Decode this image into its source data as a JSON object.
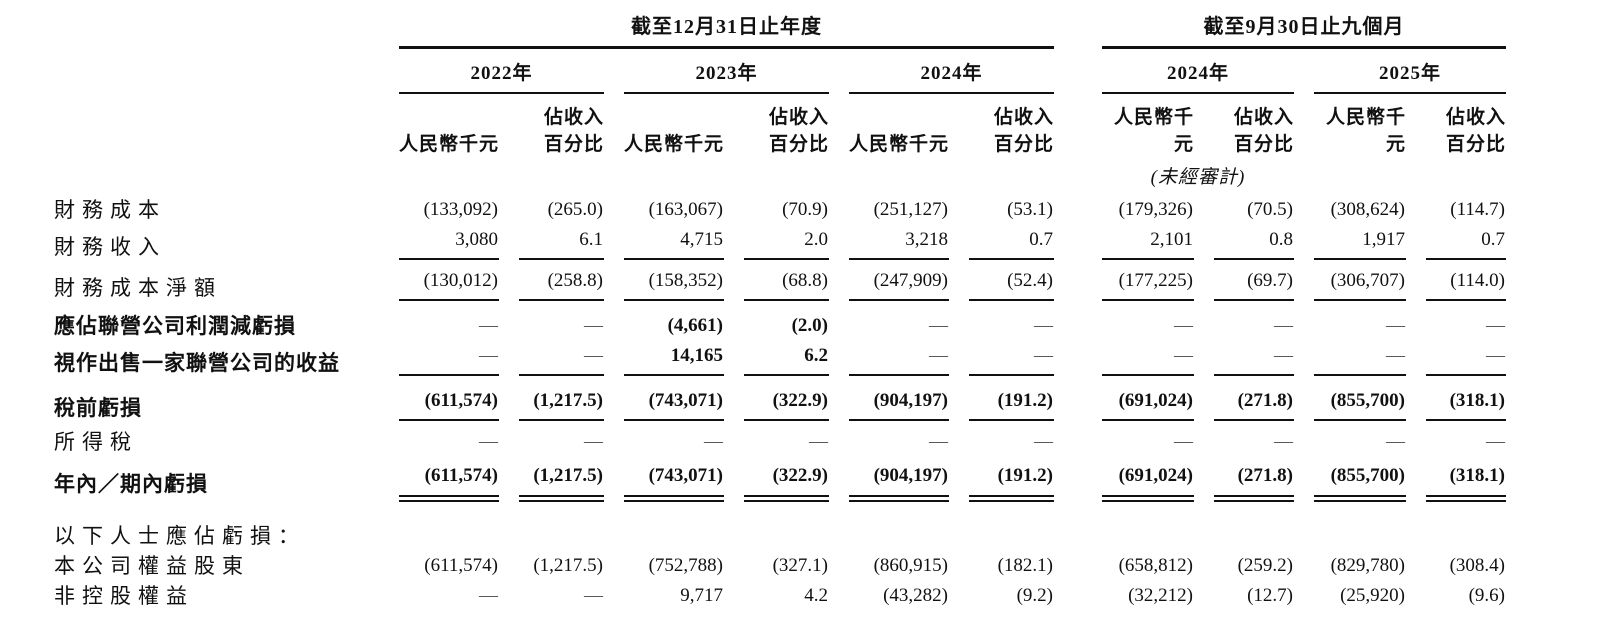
{
  "page": {
    "background": "#ffffff",
    "text_color": "#111111",
    "rule_color": "#111111",
    "dash_color": "#595959"
  },
  "table": {
    "sections": [
      {
        "title": "截至12月31日止年度",
        "years": [
          "2022年",
          "2023年",
          "2024年"
        ]
      },
      {
        "title": "截至9月30日止九個月",
        "years": [
          "2024年",
          "2025年"
        ],
        "unaudited_note": "(未經審計)"
      }
    ],
    "column_headers": {
      "amount": "人民幣千元",
      "percent": "佔收入\n百分比"
    },
    "rows": [
      {
        "label": "財務成本",
        "bold": false,
        "rule": "none",
        "gap": "none",
        "values": [
          "(133,092)",
          "(265.0)",
          "(163,067)",
          "(70.9)",
          "(251,127)",
          "(53.1)",
          "(179,326)",
          "(70.5)",
          "(308,624)",
          "(114.7)"
        ]
      },
      {
        "label": "財務收入",
        "bold": false,
        "rule": "single",
        "gap": "none",
        "values": [
          "3,080",
          "6.1",
          "4,715",
          "2.0",
          "3,218",
          "0.7",
          "2,101",
          "0.8",
          "1,917",
          "0.7"
        ]
      },
      {
        "label": "財務成本淨額",
        "bold": false,
        "rule": "single",
        "gap": "sm",
        "values": [
          "(130,012)",
          "(258.8)",
          "(158,352)",
          "(68.8)",
          "(247,909)",
          "(52.4)",
          "(177,225)",
          "(69.7)",
          "(306,707)",
          "(114.0)"
        ]
      },
      {
        "label": "應佔聯營公司利潤減虧損",
        "bold": true,
        "rule": "none",
        "gap": "md",
        "values": [
          "—",
          "—",
          "(4,661)",
          "(2.0)",
          "—",
          "—",
          "—",
          "—",
          "—",
          "—"
        ]
      },
      {
        "label": "視作出售一家聯營公司的收益",
        "bold": true,
        "rule": "single",
        "gap": "none",
        "values": [
          "—",
          "—",
          "14,165",
          "6.2",
          "—",
          "—",
          "—",
          "—",
          "—",
          "—"
        ]
      },
      {
        "label": "稅前虧損",
        "bold": true,
        "rule": "single",
        "gap": "md",
        "values": [
          "(611,574)",
          "(1,217.5)",
          "(743,071)",
          "(322.9)",
          "(904,197)",
          "(191.2)",
          "(691,024)",
          "(271.8)",
          "(855,700)",
          "(318.1)"
        ]
      },
      {
        "label": "所得稅",
        "bold": false,
        "rule": "none",
        "gap": "sm",
        "values": [
          "—",
          "—",
          "—",
          "—",
          "—",
          "—",
          "—",
          "—",
          "—",
          "—"
        ]
      },
      {
        "label": "年內／期內虧損",
        "bold": true,
        "rule": "double",
        "gap": "sm",
        "values": [
          "(611,574)",
          "(1,217.5)",
          "(743,071)",
          "(322.9)",
          "(904,197)",
          "(191.2)",
          "(691,024)",
          "(271.8)",
          "(855,700)",
          "(318.1)"
        ]
      },
      {
        "label": "以下人士應佔虧損：",
        "bold": false,
        "rule": "none",
        "gap": "lg",
        "values": [
          "",
          "",
          "",
          "",
          "",
          "",
          "",
          "",
          "",
          ""
        ]
      },
      {
        "label": "本公司權益股東",
        "bold": false,
        "rule": "none",
        "gap": "none",
        "values": [
          "(611,574)",
          "(1,217.5)",
          "(752,788)",
          "(327.1)",
          "(860,915)",
          "(182.1)",
          "(658,812)",
          "(259.2)",
          "(829,780)",
          "(308.4)"
        ]
      },
      {
        "label": "非控股權益",
        "bold": false,
        "rule": "none",
        "gap": "none",
        "values": [
          "—",
          "—",
          "9,717",
          "4.2",
          "(43,282)",
          "(9.2)",
          "(32,212)",
          "(12.7)",
          "(25,920)",
          "(9.6)"
        ]
      }
    ]
  }
}
